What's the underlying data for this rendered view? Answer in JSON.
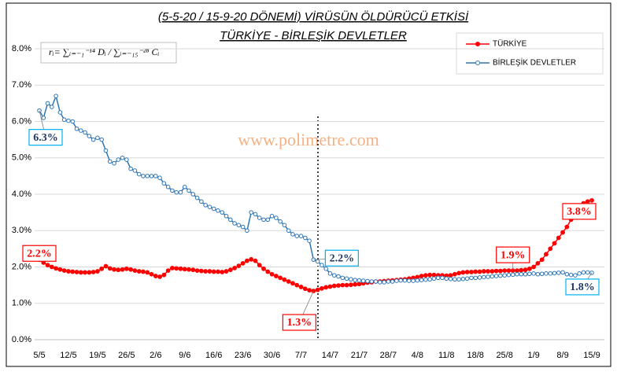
{
  "chart_data": {
    "type": "line",
    "title": "(5-5-20 / 15-9-20 DÖNEMİ) VİRÜSÜN ÖLDÜRÜCÜ ETKİSİ",
    "subtitle": "TÜRKİYE - BİRLEŞİK DEVLETLER",
    "formula": "rᵢ= ∑ᵢ₌₋₁⁻¹⁴ Dᵢ / ∑ᵢ₌₋₁₅⁻²⁸ Cᵢ",
    "watermark": "www.polimetre.com",
    "categories": [
      "5/5",
      null,
      null,
      null,
      null,
      null,
      null,
      "12/5",
      null,
      null,
      null,
      null,
      null,
      null,
      "19/5",
      null,
      null,
      null,
      null,
      null,
      null,
      "26/5",
      null,
      null,
      null,
      null,
      null,
      null,
      "2/6",
      null,
      null,
      null,
      null,
      null,
      null,
      "9/6",
      null,
      null,
      null,
      null,
      null,
      null,
      "16/6",
      null,
      null,
      null,
      null,
      null,
      null,
      "23/6",
      null,
      null,
      null,
      null,
      null,
      null,
      "30/6",
      null,
      null,
      null,
      null,
      null,
      null,
      "7/7",
      null,
      null,
      null,
      null,
      null,
      null,
      "14/7",
      null,
      null,
      null,
      null,
      null,
      null,
      "21/7",
      null,
      null,
      null,
      null,
      null,
      null,
      "28/7",
      null,
      null,
      null,
      null,
      null,
      null,
      "4/8",
      null,
      null,
      null,
      null,
      null,
      null,
      "11/8",
      null,
      null,
      null,
      null,
      null,
      null,
      "18/8",
      null,
      null,
      null,
      null,
      null,
      null,
      "25/8",
      null,
      null,
      null,
      null,
      null,
      null,
      "1/9",
      null,
      null,
      null,
      null,
      null,
      null,
      "8/9",
      null,
      null,
      null,
      null,
      null,
      null,
      "15/9"
    ],
    "series": [
      {
        "name": "TÜRKİYE",
        "color": "#ff0000",
        "marker": "filled",
        "values": [
          2.2,
          2.12,
          2.05,
          2.0,
          1.96,
          1.93,
          1.9,
          1.88,
          1.87,
          1.86,
          1.85,
          1.85,
          1.85,
          1.86,
          1.88,
          1.95,
          2.02,
          1.96,
          1.93,
          1.92,
          1.93,
          1.95,
          1.93,
          1.9,
          1.88,
          1.87,
          1.85,
          1.8,
          1.75,
          1.73,
          1.78,
          1.9,
          1.97,
          1.96,
          1.95,
          1.94,
          1.93,
          1.92,
          1.9,
          1.89,
          1.88,
          1.88,
          1.87,
          1.87,
          1.86,
          1.88,
          1.92,
          1.97,
          2.03,
          2.1,
          2.17,
          2.21,
          2.17,
          2.05,
          1.95,
          1.87,
          1.8,
          1.75,
          1.7,
          1.65,
          1.6,
          1.55,
          1.5,
          1.45,
          1.4,
          1.36,
          1.34,
          1.37,
          1.41,
          1.44,
          1.46,
          1.48,
          1.49,
          1.5,
          1.5,
          1.51,
          1.52,
          1.53,
          1.55,
          1.57,
          1.58,
          1.6,
          1.6,
          1.61,
          1.62,
          1.63,
          1.64,
          1.65,
          1.66,
          1.68,
          1.7,
          1.72,
          1.75,
          1.77,
          1.78,
          1.78,
          1.77,
          1.77,
          1.76,
          1.77,
          1.8,
          1.83,
          1.85,
          1.86,
          1.86,
          1.87,
          1.87,
          1.88,
          1.88,
          1.88,
          1.89,
          1.89,
          1.9,
          1.9,
          1.9,
          1.9,
          1.91,
          1.92,
          1.95,
          2.0,
          2.1,
          2.2,
          2.35,
          2.5,
          2.65,
          2.8,
          2.95,
          3.1,
          3.3,
          3.45,
          3.6,
          3.75,
          3.8,
          3.83
        ],
        "value_labels": [
          "2.2%",
          null,
          null,
          null,
          null,
          null,
          null,
          null,
          null,
          null,
          null,
          null,
          null,
          null,
          null,
          null,
          null,
          null,
          null,
          null,
          null,
          null,
          null,
          null,
          null,
          null,
          null,
          null,
          null,
          null,
          null,
          null,
          null,
          null,
          null,
          null,
          null,
          null,
          null,
          null,
          null,
          null,
          null,
          null,
          null,
          null,
          null,
          null,
          null,
          null,
          null,
          null,
          null,
          null,
          null,
          null,
          null,
          null,
          null,
          null,
          null,
          null,
          null,
          null,
          null,
          null,
          "1.3%",
          null,
          null,
          null,
          null,
          null,
          null,
          null,
          null,
          null,
          null,
          null,
          null,
          null,
          null,
          null,
          null,
          null,
          null,
          null,
          null,
          null,
          null,
          null,
          null,
          null,
          null,
          null,
          null,
          null,
          null,
          null,
          null,
          null,
          null,
          null,
          null,
          null,
          null,
          null,
          null,
          null,
          null,
          null,
          null,
          null,
          null,
          null,
          "1.9%",
          null,
          null,
          null,
          null,
          null,
          null,
          null,
          null,
          null,
          null,
          null,
          null,
          null,
          null,
          null,
          null,
          null,
          null,
          "3.8%"
        ]
      },
      {
        "name": "BİRLEŞİK DEVLETLER",
        "color": "#2e75b6",
        "marker": "open",
        "values": [
          6.3,
          6.1,
          6.5,
          6.4,
          6.7,
          6.25,
          6.05,
          6.02,
          6.0,
          5.8,
          5.75,
          5.7,
          5.6,
          5.5,
          5.55,
          5.5,
          5.2,
          4.9,
          4.85,
          4.95,
          5.0,
          4.95,
          4.7,
          4.65,
          4.55,
          4.5,
          4.5,
          4.5,
          4.5,
          4.45,
          4.3,
          4.2,
          4.1,
          4.05,
          4.05,
          4.2,
          4.1,
          4.0,
          3.9,
          3.8,
          3.7,
          3.65,
          3.6,
          3.55,
          3.5,
          3.4,
          3.3,
          3.2,
          3.15,
          3.1,
          3.0,
          3.5,
          3.45,
          3.35,
          3.3,
          3.3,
          3.4,
          3.35,
          3.25,
          3.15,
          3.0,
          2.9,
          2.85,
          2.85,
          2.8,
          2.72,
          2.2,
          2.15,
          2.05,
          1.95,
          1.82,
          1.77,
          1.74,
          1.7,
          1.68,
          1.66,
          1.64,
          1.63,
          1.62,
          1.61,
          1.6,
          1.6,
          1.58,
          1.58,
          1.6,
          1.6,
          1.62,
          1.63,
          1.63,
          1.62,
          1.62,
          1.63,
          1.64,
          1.65,
          1.66,
          1.68,
          1.7,
          1.7,
          1.68,
          1.67,
          1.66,
          1.66,
          1.67,
          1.68,
          1.7,
          1.7,
          1.71,
          1.72,
          1.73,
          1.74,
          1.75,
          1.76,
          1.77,
          1.78,
          1.79,
          1.8,
          1.8,
          1.8,
          1.81,
          1.82,
          1.8,
          1.81,
          1.82,
          1.82,
          1.83,
          1.84,
          1.85,
          1.8,
          1.78,
          1.77,
          1.82,
          1.85,
          1.85,
          1.84
        ],
        "value_labels": [
          "6.3%",
          null,
          null,
          null,
          null,
          null,
          null,
          null,
          null,
          null,
          null,
          null,
          null,
          null,
          null,
          null,
          null,
          null,
          null,
          null,
          null,
          null,
          null,
          null,
          null,
          null,
          null,
          null,
          null,
          null,
          null,
          null,
          null,
          null,
          null,
          null,
          null,
          null,
          null,
          null,
          null,
          null,
          null,
          null,
          null,
          null,
          null,
          null,
          null,
          null,
          null,
          null,
          null,
          null,
          null,
          null,
          null,
          null,
          null,
          null,
          null,
          null,
          null,
          null,
          null,
          null,
          "2.2%",
          null,
          null,
          null,
          null,
          null,
          null,
          null,
          null,
          null,
          null,
          null,
          null,
          null,
          null,
          null,
          null,
          null,
          null,
          null,
          null,
          null,
          null,
          null,
          null,
          null,
          null,
          null,
          null,
          null,
          null,
          null,
          null,
          null,
          null,
          null,
          null,
          null,
          null,
          null,
          null,
          null,
          null,
          null,
          null,
          null,
          null,
          null,
          null,
          null,
          null,
          null,
          null,
          null,
          null,
          null,
          null,
          null,
          null,
          null,
          null,
          null,
          null,
          null,
          null,
          null,
          null,
          "1.8%"
        ]
      }
    ],
    "ylim": [
      0,
      8
    ],
    "yticks": [
      {
        "value": 0,
        "label": "0.0%"
      },
      {
        "value": 1,
        "label": "1.0%"
      },
      {
        "value": 2,
        "label": "2.0%"
      },
      {
        "value": 3,
        "label": "3.0%"
      },
      {
        "value": 4,
        "label": "4.0%"
      },
      {
        "value": 5,
        "label": "5.0%"
      },
      {
        "value": 6,
        "label": "6.0%"
      },
      {
        "value": 7,
        "label": "7.0%"
      },
      {
        "value": 8,
        "label": "8.0%"
      }
    ],
    "grid": true,
    "legend": "top-right"
  }
}
